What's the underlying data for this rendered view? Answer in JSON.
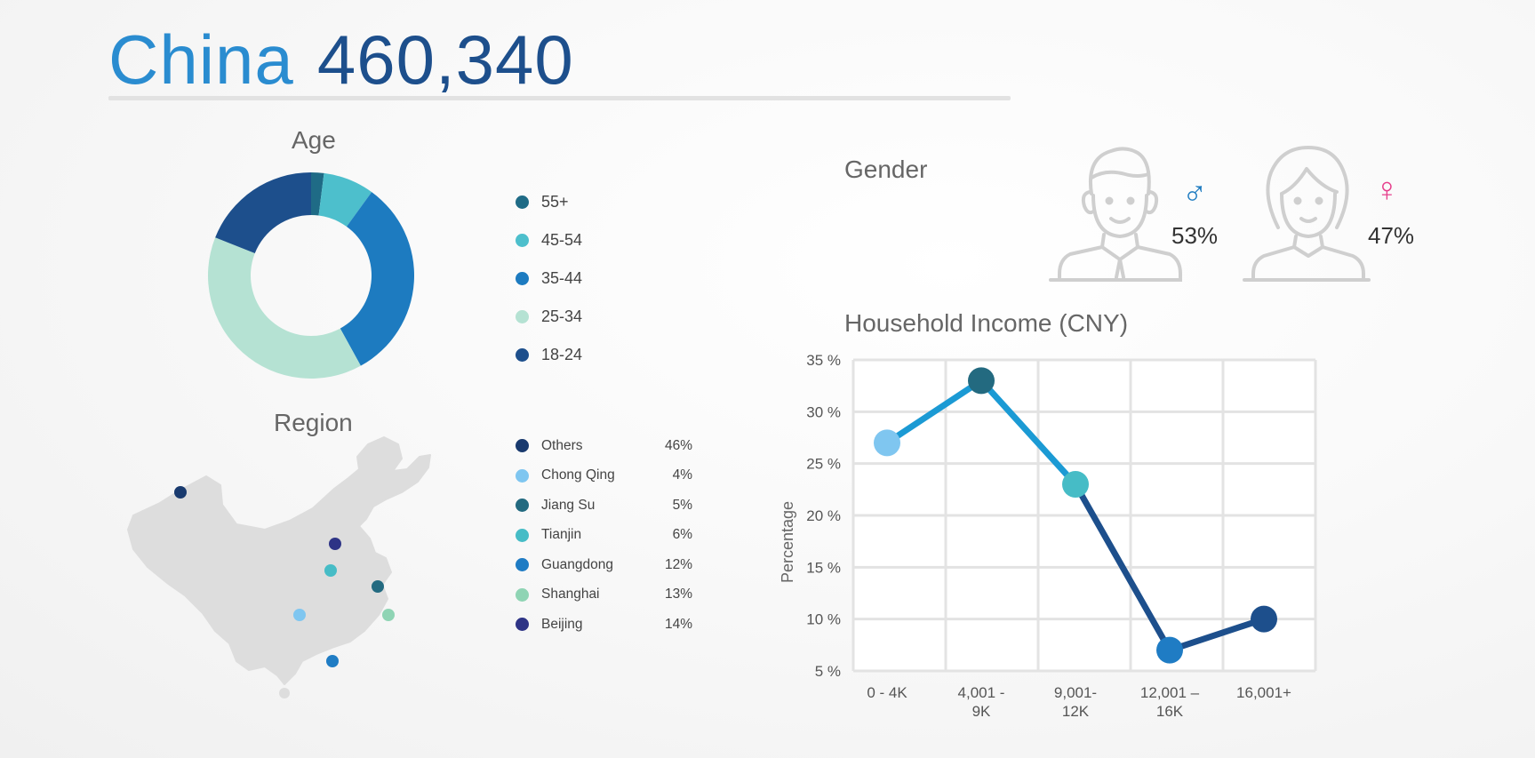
{
  "header": {
    "country": "China",
    "total": "460,340"
  },
  "age": {
    "title": "Age",
    "segments": [
      {
        "label": "55+",
        "value": 2,
        "color": "#1f6b86"
      },
      {
        "label": "45-54",
        "value": 8,
        "color": "#4dbfcc"
      },
      {
        "label": "35-44",
        "value": 32,
        "color": "#1d7bc0"
      },
      {
        "label": "25-34",
        "value": 39,
        "color": "#b5e2d3"
      },
      {
        "label": "18-24",
        "value": 19,
        "color": "#1d4f8c"
      }
    ]
  },
  "region": {
    "title": "Region",
    "items": [
      {
        "name": "Others",
        "pct": "46%",
        "color": "#193a6e"
      },
      {
        "name": "Chong Qing",
        "pct": "4%",
        "color": "#7fc6f0"
      },
      {
        "name": "Jiang Su",
        "pct": "5%",
        "color": "#236a80"
      },
      {
        "name": "Tianjin",
        "pct": "6%",
        "color": "#46bcc6"
      },
      {
        "name": "Guangdong",
        "pct": "12%",
        "color": "#1f7cc4"
      },
      {
        "name": "Shanghai",
        "pct": "13%",
        "color": "#8fd4b4"
      },
      {
        "name": "Beijing",
        "pct": "14%",
        "color": "#2e3486"
      }
    ]
  },
  "gender": {
    "title": "Gender",
    "male": {
      "symbol": "♂",
      "pct": "53%",
      "color": "#1d7bc0"
    },
    "female": {
      "symbol": "♀",
      "pct": "47%",
      "color": "#e63f8c"
    }
  },
  "chart_data": {
    "type": "line",
    "title": "Household Income (CNY)",
    "ylabel": "Percentage",
    "xlabel": "",
    "categories": [
      "0 - 4K",
      "4,001 - 9K",
      "9,001- 12K",
      "12,001 – 16K",
      "16,001+"
    ],
    "category_lines": [
      [
        "0 - 4K"
      ],
      [
        "4,001 -",
        "9K"
      ],
      [
        "9,001-",
        "12K"
      ],
      [
        "12,001 –",
        "16K"
      ],
      [
        "16,001+"
      ]
    ],
    "values": [
      27,
      33,
      23,
      7,
      10
    ],
    "point_colors": [
      "#7fc6f0",
      "#236a80",
      "#46bcc6",
      "#1f7cc4",
      "#1d4f8c"
    ],
    "line_colors": [
      "#1b9ad4",
      "#1b9ad4",
      "#1d4f8c",
      "#1d4f8c"
    ],
    "ylim": [
      5,
      35
    ],
    "yticks": [
      5,
      10,
      15,
      20,
      25,
      30,
      35
    ],
    "ytick_labels": [
      "5 %",
      "10 %",
      "15 %",
      "20 %",
      "25 %",
      "30 %",
      "35 %"
    ],
    "grid": true
  }
}
